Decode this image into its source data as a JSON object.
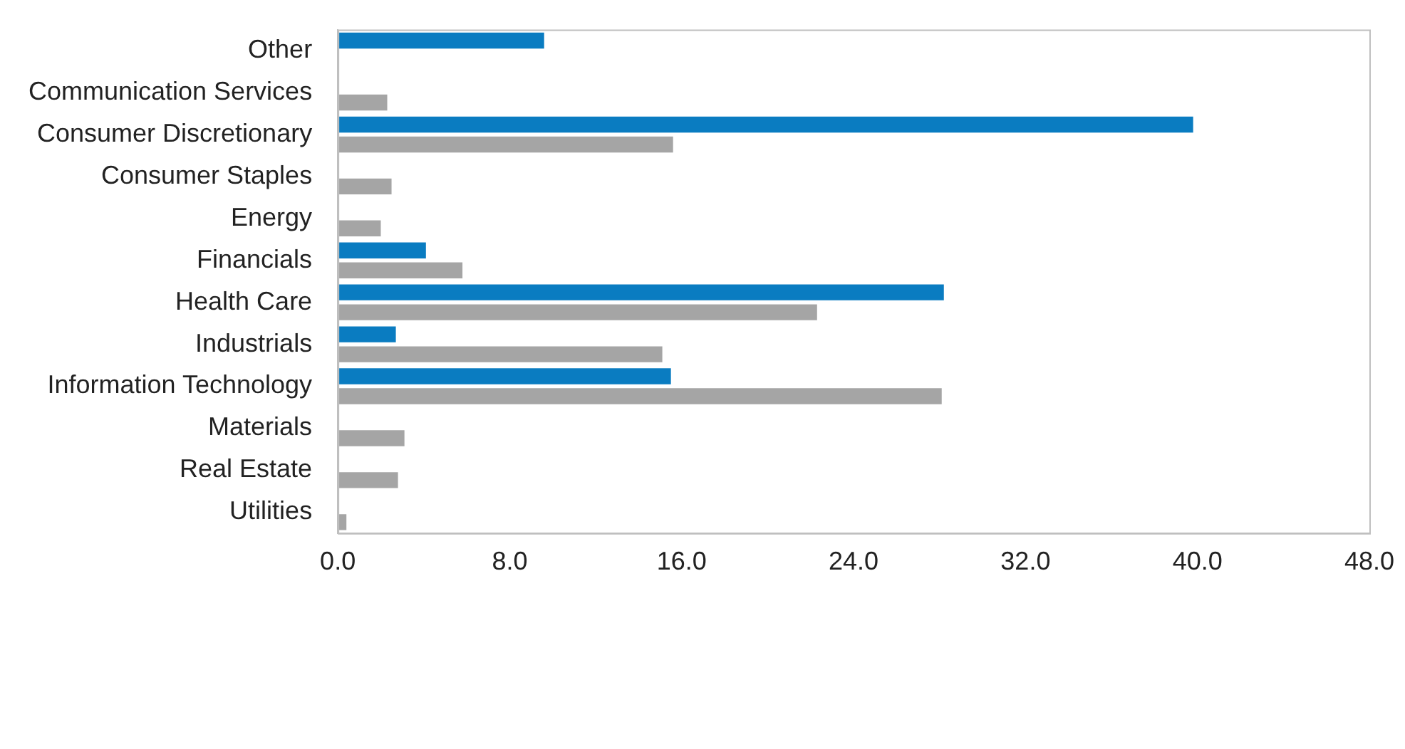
{
  "chart_data": {
    "type": "bar",
    "orientation": "horizontal",
    "categories": [
      "Other",
      "Communication Services",
      "Consumer Discretionary",
      "Consumer Staples",
      "Energy",
      "Financials",
      "Health Care",
      "Industrials",
      "Information Technology",
      "Materials",
      "Real Estate",
      "Utilities"
    ],
    "series": [
      {
        "color": "#0a7cc1",
        "values": [
          9.6,
          0,
          39.8,
          0,
          0,
          4.1,
          28.2,
          2.7,
          15.5,
          0,
          0,
          0
        ]
      },
      {
        "color": "#a5a5a5",
        "values": [
          0,
          2.3,
          15.6,
          2.5,
          2.0,
          5.8,
          22.3,
          15.1,
          28.1,
          3.1,
          2.8,
          0.4
        ]
      }
    ],
    "xlim": [
      0,
      48
    ],
    "xticks": [
      {
        "value": 0,
        "label": "0.0"
      },
      {
        "value": 8,
        "label": "8.0"
      },
      {
        "value": 16,
        "label": "16.0"
      },
      {
        "value": 24,
        "label": "24.0"
      },
      {
        "value": 32,
        "label": "32.0"
      },
      {
        "value": 40,
        "label": "40.0"
      },
      {
        "value": 48,
        "label": "48.0"
      }
    ],
    "grid": false,
    "legend": false
  }
}
